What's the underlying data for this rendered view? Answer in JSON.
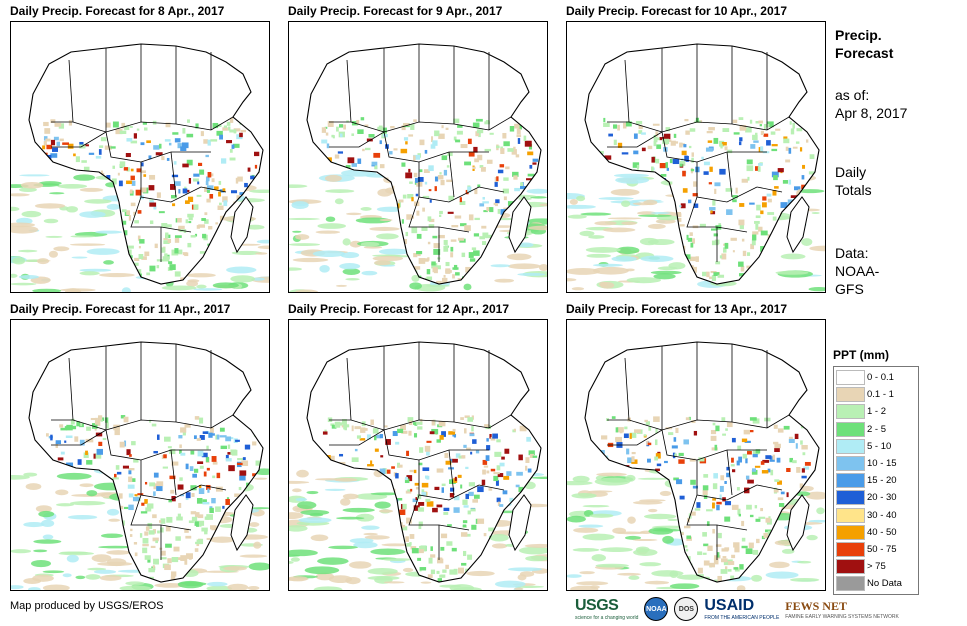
{
  "panels": [
    {
      "title": "Daily Precip. Forecast for 8 Apr., 2017"
    },
    {
      "title": "Daily Precip. Forecast for 9 Apr., 2017"
    },
    {
      "title": "Daily Precip. Forecast for 10 Apr., 2017"
    },
    {
      "title": "Daily Precip. Forecast for 11 Apr., 2017"
    },
    {
      "title": "Daily Precip. Forecast for 12 Apr., 2017"
    },
    {
      "title": "Daily Precip. Forecast for 13 Apr., 2017"
    }
  ],
  "sidebar": {
    "title_line1": "Precip.",
    "title_line2": "Forecast",
    "asof_label": "as of:",
    "asof_date": "Apr 8, 2017",
    "totals_line1": "Daily",
    "totals_line2": "Totals",
    "data_label": "Data:",
    "data_line1": "NOAA-",
    "data_line2": "GFS"
  },
  "legend": {
    "title": "PPT (mm)",
    "items": [
      {
        "label": "0 - 0.1",
        "color": "#ffffff"
      },
      {
        "label": "0.1 - 1",
        "color": "#e8d5b5"
      },
      {
        "label": "1 - 2",
        "color": "#b9f0b4"
      },
      {
        "label": "2 - 5",
        "color": "#6ee07a"
      },
      {
        "label": "5 - 10",
        "color": "#b0ecf5"
      },
      {
        "label": "10 - 15",
        "color": "#7ec3ef"
      },
      {
        "label": "15 - 20",
        "color": "#4a9be8"
      },
      {
        "label": "20 - 30",
        "color": "#1f5fd6"
      },
      {
        "label": "30 - 40",
        "color": "#ffe48a"
      },
      {
        "label": "40 - 50",
        "color": "#f5a000"
      },
      {
        "label": "50 - 75",
        "color": "#e8400a"
      },
      {
        "label": "> 75",
        "color": "#a01010"
      },
      {
        "label": "No Data",
        "color": "#9a9a9a"
      }
    ]
  },
  "credit": "Map produced by USGS/EROS",
  "logos": {
    "usgs": "USGS",
    "usgs_tagline": "science for a changing world",
    "noaa": "NOAA",
    "dos": "DOS",
    "usaid": "USAID",
    "usaid_tagline": "FROM THE AMERICAN PEOPLE",
    "fews": "FEWS NET",
    "fews_tagline": "FAMINE EARLY WARNING SYSTEMS NETWORK"
  }
}
